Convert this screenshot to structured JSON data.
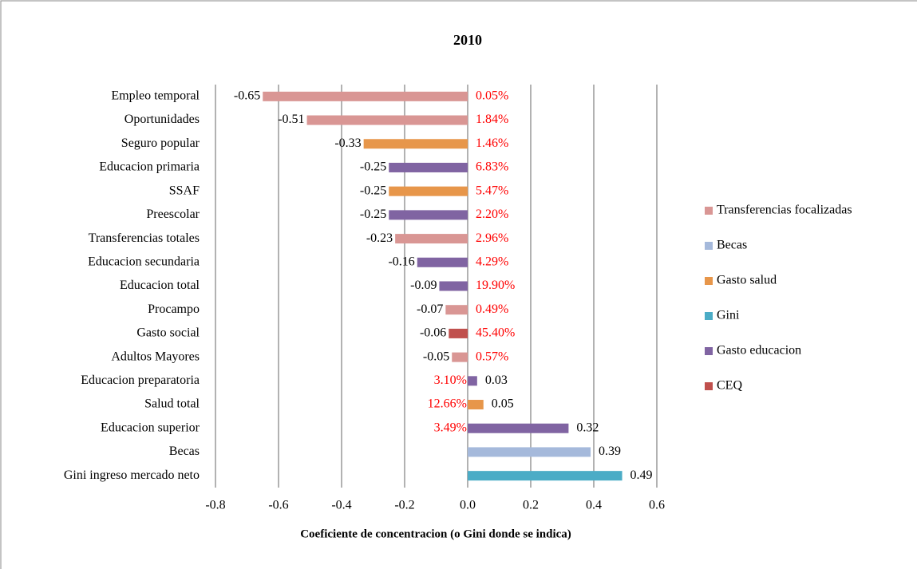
{
  "chart_data": {
    "type": "bar",
    "orientation": "horizontal",
    "title": "2010",
    "x_label": "Coeficiente de concentracion (o Gini donde se indica)",
    "categories": [
      "Empleo temporal",
      "Oportunidades",
      "Seguro popular",
      "Educacion primaria",
      "SSAF",
      "Preescolar",
      "Transferencias totales",
      "Educacion secundaria",
      "Educacion total",
      "Procampo",
      "Gasto social",
      "Adultos Mayores",
      "Educacion preparatoria",
      "Salud total",
      "Educacion superior",
      "Becas",
      "Gini ingreso mercado neto"
    ],
    "series": [
      {
        "name": "Transferencias focalizadas",
        "color": "#d99694",
        "values": [
          -0.65,
          -0.51,
          null,
          null,
          null,
          null,
          -0.23,
          null,
          null,
          -0.07,
          null,
          -0.05,
          null,
          null,
          null,
          null,
          null
        ]
      },
      {
        "name": "Becas",
        "color": "#a5b9db",
        "values": [
          null,
          null,
          null,
          null,
          null,
          null,
          null,
          null,
          null,
          null,
          null,
          null,
          null,
          null,
          null,
          0.39,
          null
        ]
      },
      {
        "name": "Gasto salud",
        "color": "#e7964a",
        "values": [
          null,
          null,
          -0.33,
          null,
          -0.25,
          null,
          null,
          null,
          null,
          null,
          null,
          null,
          null,
          0.05,
          null,
          null,
          null
        ]
      },
      {
        "name": "Gini",
        "color": "#4bacc6",
        "values": [
          null,
          null,
          null,
          null,
          null,
          null,
          null,
          null,
          null,
          null,
          null,
          null,
          null,
          null,
          null,
          null,
          0.49
        ]
      },
      {
        "name": "Gasto educacion",
        "color": "#8064a2",
        "values": [
          null,
          null,
          null,
          -0.25,
          null,
          -0.25,
          null,
          -0.16,
          -0.09,
          null,
          null,
          null,
          0.03,
          null,
          0.32,
          null,
          null
        ]
      },
      {
        "name": "CEQ",
        "color": "#c0504d",
        "values": [
          null,
          null,
          null,
          null,
          null,
          null,
          null,
          null,
          null,
          null,
          -0.06,
          null,
          null,
          null,
          null,
          null,
          null
        ]
      }
    ],
    "share_labels": [
      "0.05%",
      "1.84%",
      "1.46%",
      "6.83%",
      "5.47%",
      "2.20%",
      "2.96%",
      "4.29%",
      "19.90%",
      "0.49%",
      "45.40%",
      "0.57%",
      "3.10%",
      "12.66%",
      "3.49%",
      null,
      null
    ],
    "share_color": "#ff0000",
    "xlim": [
      -0.8,
      0.6
    ],
    "xticks": [
      -0.8,
      -0.6,
      -0.4,
      -0.2,
      {
        "value": 0,
        "label": "0.0"
      },
      0.2,
      0.4,
      0.6
    ],
    "grid": true,
    "legend": "right"
  }
}
